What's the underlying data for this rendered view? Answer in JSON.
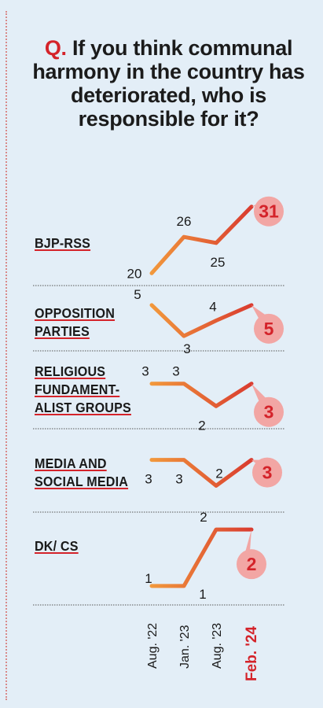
{
  "title": {
    "prefix": "Q.",
    "text": "If you think communal harmony in the country has deteriorated, who is responsible for it?"
  },
  "chart_data": {
    "type": "line",
    "x": [
      "Aug. '22",
      "Jan. '23",
      "Aug. '23",
      "Feb. '24"
    ],
    "series": [
      {
        "name": "BJP-RSS",
        "values": [
          20,
          26,
          25,
          31
        ]
      },
      {
        "name": "OPPOSITION\nPARTIES",
        "values": [
          5,
          3,
          4,
          5
        ]
      },
      {
        "name": "RELIGIOUS\nFUNDAMENT-\nALIST GROUPS",
        "values": [
          3,
          3,
          2,
          3
        ]
      },
      {
        "name": "MEDIA AND\nSOCIAL MEDIA",
        "values": [
          3,
          3,
          2,
          3
        ]
      },
      {
        "name": "DK/ CS",
        "values": [
          1,
          1,
          2,
          2
        ]
      }
    ],
    "colors": {
      "line_start": "#f29a3c",
      "line_end": "#d93a2f",
      "circle": "#f2a6a4",
      "circle_text": "#d4232a",
      "highlight_tick": "#d4232a"
    }
  }
}
